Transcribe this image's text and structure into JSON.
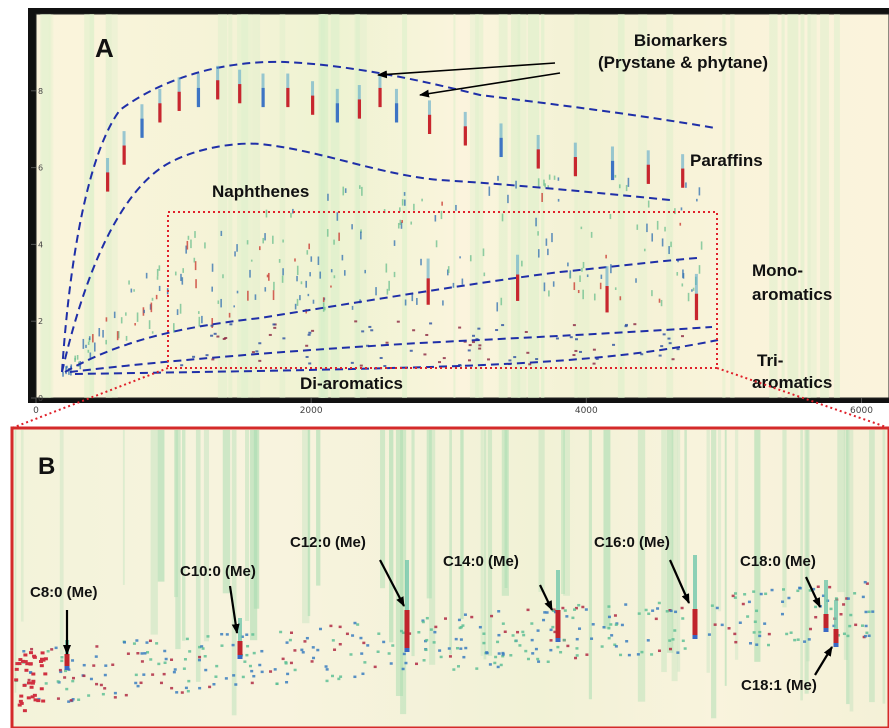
{
  "chart_data": [
    {
      "type": "scatter",
      "panel_label": "A",
      "x_ticks": [
        0,
        2000,
        4000,
        6000
      ],
      "y_ticks": [
        0,
        2,
        4,
        6,
        8
      ],
      "xlim": [
        0,
        6200
      ],
      "ylim": [
        0,
        10
      ],
      "grid": false,
      "regions": [
        {
          "label": "Biomarkers\n(Prystane & phytane)"
        },
        {
          "label": "Paraffins"
        },
        {
          "label": "Naphthenes"
        },
        {
          "label": "Mono-\naromatics"
        },
        {
          "label": "Di-aromatics"
        },
        {
          "label": "Tri-\naromatics"
        }
      ],
      "series": [
        {
          "points": [
            [
              520,
              5.5
            ],
            [
              640,
              6.2
            ],
            [
              770,
              6.9
            ],
            [
              900,
              7.3
            ],
            [
              1040,
              7.6
            ],
            [
              1180,
              7.7
            ],
            [
              1320,
              7.9
            ],
            [
              1480,
              7.8
            ],
            [
              1650,
              7.7
            ],
            [
              1830,
              7.7
            ],
            [
              2010,
              7.5
            ],
            [
              2190,
              7.3
            ],
            [
              2350,
              7.4
            ],
            [
              2500,
              7.7
            ],
            [
              2620,
              7.3
            ],
            [
              2860,
              7.0
            ],
            [
              3120,
              6.7
            ],
            [
              3380,
              6.4
            ],
            [
              3650,
              6.1
            ],
            [
              3920,
              5.9
            ],
            [
              4190,
              5.8
            ],
            [
              4450,
              5.7
            ],
            [
              4700,
              5.6
            ]
          ]
        },
        {
          "points": [
            [
              2850,
              2.6
            ],
            [
              3500,
              2.7
            ],
            [
              4150,
              2.4
            ],
            [
              4800,
              2.2
            ]
          ]
        }
      ]
    },
    {
      "type": "scatter",
      "panel_label": "B",
      "annotations": [
        "C8:0 (Me)",
        "C10:0 (Me)",
        "C12:0 (Me)",
        "C14:0 (Me)",
        "C16:0 (Me)",
        "C18:0 (Me)",
        "C18:1 (Me)"
      ]
    }
  ]
}
